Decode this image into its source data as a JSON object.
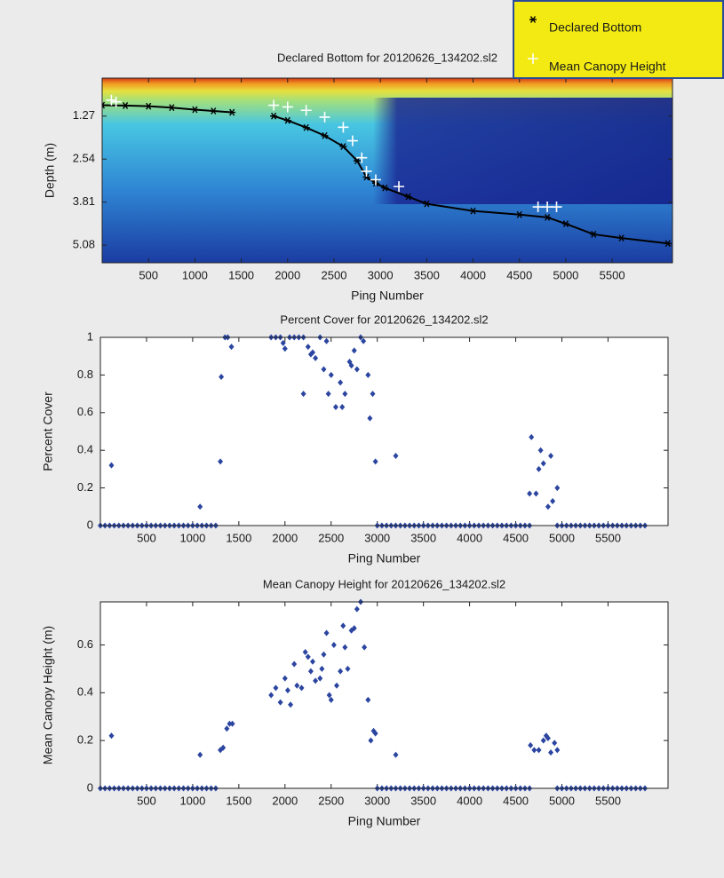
{
  "chart_data": [
    {
      "type": "line",
      "title": "Declared Bottom for 20120626_134202.sl2",
      "xlabel": "Ping Number",
      "ylabel": "Depth (m)",
      "xlim": [
        0,
        6150
      ],
      "xticks": [
        500,
        1000,
        1500,
        2000,
        2500,
        3000,
        3500,
        4000,
        4500,
        5000,
        5500
      ],
      "ylim": [
        0.15,
        5.6
      ],
      "yticks": [
        1.27,
        2.54,
        3.81,
        5.08
      ],
      "yreverse": true,
      "legend": "top-right",
      "series": [
        {
          "name": "Declared Bottom",
          "color": "#000000",
          "marker": "*",
          "line": true,
          "x": [
            0,
            250,
            500,
            750,
            1000,
            1200,
            1400,
            1600,
            1850,
            2000,
            2200,
            2400,
            2600,
            2750,
            2850,
            2950,
            3050,
            3300,
            3500,
            4000,
            4500,
            4800,
            5000,
            5300,
            5600,
            6100
          ],
          "values": [
            0.95,
            0.96,
            0.98,
            1.02,
            1.08,
            1.12,
            1.16,
            null,
            1.27,
            1.4,
            1.61,
            1.85,
            2.17,
            2.59,
            3.07,
            3.25,
            3.39,
            3.65,
            3.86,
            4.07,
            4.18,
            4.26,
            4.45,
            4.76,
            4.87,
            5.03
          ]
        },
        {
          "name": "Mean Canopy Height",
          "color": "#ffffff",
          "marker": "+",
          "line": false,
          "x": [
            100,
            150,
            1850,
            2000,
            2200,
            2400,
            2600,
            2700,
            2800,
            2850,
            2950,
            3200,
            4700,
            4800,
            4900
          ],
          "values": [
            0.8,
            0.85,
            0.95,
            1.0,
            1.1,
            1.3,
            1.6,
            2.0,
            2.5,
            2.9,
            3.15,
            3.35,
            3.95,
            3.95,
            3.95
          ]
        }
      ]
    },
    {
      "type": "scatter",
      "title": "Percent Cover for 20120626_134202.sl2",
      "xlabel": "Ping Number",
      "ylabel": "Percent Cover",
      "xlim": [
        0,
        6150
      ],
      "xticks": [
        500,
        1000,
        1500,
        2000,
        2500,
        3000,
        3500,
        4000,
        4500,
        5000,
        5500
      ],
      "ylim": [
        0,
        1
      ],
      "yticks": [
        0,
        0.2,
        0.4,
        0.6,
        0.8,
        1
      ],
      "series": [
        {
          "name": "Percent Cover",
          "color": "#2b45a0",
          "marker": "diamond",
          "x": [
            0,
            50,
            100,
            150,
            200,
            250,
            300,
            350,
            400,
            450,
            500,
            550,
            600,
            650,
            700,
            750,
            800,
            850,
            900,
            950,
            1000,
            1050,
            1100,
            1150,
            1200,
            1250,
            3000,
            3050,
            3100,
            3150,
            3200,
            3250,
            3300,
            3350,
            3400,
            3450,
            3500,
            3550,
            3600,
            3650,
            3700,
            3750,
            3800,
            3850,
            3900,
            3950,
            4000,
            4050,
            4100,
            4150,
            4200,
            4250,
            4300,
            4350,
            4400,
            4450,
            4500,
            4550,
            4600,
            4650,
            4950,
            5000,
            5050,
            5100,
            5150,
            5200,
            5250,
            5300,
            5350,
            5400,
            5450,
            5500,
            5550,
            5600,
            5650,
            5700,
            5750,
            5800,
            5850,
            5900,
            120,
            1080,
            1300,
            1310,
            1350,
            1380,
            1420,
            1850,
            1900,
            1950,
            1980,
            2000,
            2050,
            2100,
            2150,
            2200,
            2200,
            2250,
            2280,
            2300,
            2330,
            2380,
            2420,
            2450,
            2470,
            2500,
            2550,
            2600,
            2620,
            2650,
            2700,
            2720,
            2750,
            2780,
            2820,
            2850,
            2900,
            2920,
            2950,
            2980,
            3200,
            4650,
            4670,
            4720,
            4750,
            4770,
            4800,
            4850,
            4880,
            4900,
            4950
          ],
          "values": [
            0,
            0,
            0,
            0,
            0,
            0,
            0,
            0,
            0,
            0,
            0,
            0,
            0,
            0,
            0,
            0,
            0,
            0,
            0,
            0,
            0,
            0,
            0,
            0,
            0,
            0,
            0,
            0,
            0,
            0,
            0,
            0,
            0,
            0,
            0,
            0,
            0,
            0,
            0,
            0,
            0,
            0,
            0,
            0,
            0,
            0,
            0,
            0,
            0,
            0,
            0,
            0,
            0,
            0,
            0,
            0,
            0,
            0,
            0,
            0,
            0,
            0,
            0,
            0,
            0,
            0,
            0,
            0,
            0,
            0,
            0,
            0,
            0,
            0,
            0,
            0,
            0,
            0,
            0,
            0,
            0.32,
            0.1,
            0.34,
            0.79,
            1,
            1,
            0.95,
            1,
            1,
            1,
            0.97,
            0.94,
            1,
            1,
            1,
            0.7,
            1,
            0.95,
            0.91,
            0.92,
            0.89,
            1,
            0.83,
            0.98,
            0.7,
            0.8,
            0.63,
            0.76,
            0.63,
            0.7,
            0.87,
            0.85,
            0.93,
            0.83,
            1,
            0.98,
            0.8,
            0.57,
            0.7,
            0.34,
            0.37,
            0.17,
            0.47,
            0.17,
            0.3,
            0.4,
            0.33,
            0.1,
            0.37,
            0.13,
            0.2
          ]
        }
      ]
    },
    {
      "type": "scatter",
      "title": "Mean Canopy Height for 20120626_134202.sl2",
      "xlabel": "Ping Number",
      "ylabel": "Mean Canopy Height (m)",
      "xlim": [
        0,
        6150
      ],
      "xticks": [
        500,
        1000,
        1500,
        2000,
        2500,
        3000,
        3500,
        4000,
        4500,
        5000,
        5500
      ],
      "ylim": [
        0,
        0.78
      ],
      "yticks": [
        0,
        0.2,
        0.4,
        0.6
      ],
      "series": [
        {
          "name": "Mean Canopy Height",
          "color": "#2b45a0",
          "marker": "diamond",
          "x": [
            0,
            50,
            100,
            150,
            200,
            250,
            300,
            350,
            400,
            450,
            500,
            550,
            600,
            650,
            700,
            750,
            800,
            850,
            900,
            950,
            1000,
            1050,
            1100,
            1150,
            1200,
            1250,
            3000,
            3050,
            3100,
            3150,
            3200,
            3250,
            3300,
            3350,
            3400,
            3450,
            3500,
            3550,
            3600,
            3650,
            3700,
            3750,
            3800,
            3850,
            3900,
            3950,
            4000,
            4050,
            4100,
            4150,
            4200,
            4250,
            4300,
            4350,
            4400,
            4450,
            4500,
            4550,
            4600,
            4650,
            4950,
            5000,
            5050,
            5100,
            5150,
            5200,
            5250,
            5300,
            5350,
            5400,
            5450,
            5500,
            5550,
            5600,
            5650,
            5700,
            5750,
            5800,
            5850,
            5900,
            120,
            1080,
            1300,
            1330,
            1370,
            1400,
            1430,
            1850,
            1900,
            1950,
            2000,
            2030,
            2060,
            2100,
            2130,
            2180,
            2220,
            2250,
            2280,
            2300,
            2330,
            2380,
            2400,
            2420,
            2450,
            2480,
            2500,
            2530,
            2560,
            2600,
            2630,
            2650,
            2680,
            2720,
            2750,
            2780,
            2820,
            2860,
            2900,
            2930,
            2960,
            2980,
            3200,
            4660,
            4700,
            4750,
            4800,
            4830,
            4850,
            4880,
            4920,
            4950
          ],
          "values": [
            0,
            0,
            0,
            0,
            0,
            0,
            0,
            0,
            0,
            0,
            0,
            0,
            0,
            0,
            0,
            0,
            0,
            0,
            0,
            0,
            0,
            0,
            0,
            0,
            0,
            0,
            0,
            0,
            0,
            0,
            0,
            0,
            0,
            0,
            0,
            0,
            0,
            0,
            0,
            0,
            0,
            0,
            0,
            0,
            0,
            0,
            0,
            0,
            0,
            0,
            0,
            0,
            0,
            0,
            0,
            0,
            0,
            0,
            0,
            0,
            0,
            0,
            0,
            0,
            0,
            0,
            0,
            0,
            0,
            0,
            0,
            0,
            0,
            0,
            0,
            0,
            0,
            0,
            0,
            0,
            0.22,
            0.14,
            0.16,
            0.17,
            0.25,
            0.27,
            0.27,
            0.39,
            0.42,
            0.36,
            0.46,
            0.41,
            0.35,
            0.52,
            0.43,
            0.42,
            0.57,
            0.55,
            0.49,
            0.53,
            0.45,
            0.46,
            0.5,
            0.56,
            0.65,
            0.39,
            0.37,
            0.6,
            0.43,
            0.49,
            0.68,
            0.59,
            0.5,
            0.66,
            0.67,
            0.75,
            0.78,
            0.59,
            0.37,
            0.2,
            0.24,
            0.23,
            0.14,
            0.18,
            0.16,
            0.16,
            0.2,
            0.22,
            0.21,
            0.15,
            0.19,
            0.16
          ]
        }
      ]
    }
  ]
}
